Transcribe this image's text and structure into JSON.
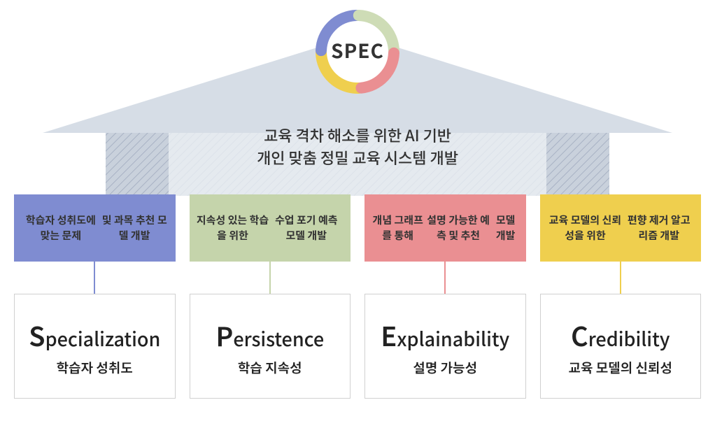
{
  "diagram": {
    "type": "infographic",
    "background_color": "#ffffff",
    "spec_ring": {
      "label": "SPEC",
      "label_fontsize": 28,
      "label_color": "#333333",
      "outer_diameter": 120,
      "ring_thickness": 16,
      "inner_fill": "#ffffff",
      "segments": [
        {
          "color": "#efcf4e",
          "start": 178,
          "end": 268
        },
        {
          "color": "#7f8cd1",
          "start": 272,
          "end": 358
        },
        {
          "color": "#cedcb6",
          "start": 2,
          "end": 88
        },
        {
          "color": "#ea8f92",
          "start": 92,
          "end": 174
        }
      ]
    },
    "arrow": {
      "fill": "#d6dde6",
      "body_fill": "#c8cfdb",
      "hatch_color": "#a8b2c4",
      "total_width": 900,
      "head_height": 160,
      "body_height": 100
    },
    "banner": {
      "line1": "교육 격차 해소를 위한 AI 기반",
      "line2": "개인 맞춤 정밀 교육 시스템 개발",
      "fontsize": 22,
      "color": "#333333"
    },
    "columns": [
      {
        "id": "specialization",
        "accent": "#7f8cd1",
        "top_fill": "#7f8cd1",
        "top_lines": [
          "학습자 성취도에 맞는 문제",
          "및 과목 추천 모델 개발"
        ],
        "bottom_initial": "S",
        "bottom_rest": "pecialization",
        "bottom_sub": "학습자 성취도"
      },
      {
        "id": "persistence",
        "accent": "#c5d4ab",
        "top_fill": "#c5d4ab",
        "top_lines": [
          "지속성 있는 학습을 위한",
          "수업 포기 예측 모델 개발"
        ],
        "bottom_initial": "P",
        "bottom_rest": "ersistence",
        "bottom_sub": "학습 지속성"
      },
      {
        "id": "explainability",
        "accent": "#ea8f92",
        "top_fill": "#ea8f92",
        "top_lines": [
          "개념 그래프를 통해",
          "설명 가능한 예측 및 추천",
          "모델 개발"
        ],
        "bottom_initial": "E",
        "bottom_rest": "xplainability",
        "bottom_sub": "설명 가능성"
      },
      {
        "id": "credibility",
        "accent": "#efcf4e",
        "top_fill": "#efcf4e",
        "top_lines": [
          "교육 모델의 신뢰성을 위한",
          "편향 제거 알고리즘 개발"
        ],
        "bottom_initial": "C",
        "bottom_rest": "redibility",
        "bottom_sub": "교육 모델의 신뢰성"
      }
    ],
    "bottom_card": {
      "border_color": "#d0d0d0",
      "height": 150,
      "title_fontsize": 27,
      "initial_fontsize": 38,
      "sub_fontsize": 19
    },
    "top_card": {
      "height": 96,
      "fontsize": 15
    },
    "connector_height": 46
  }
}
